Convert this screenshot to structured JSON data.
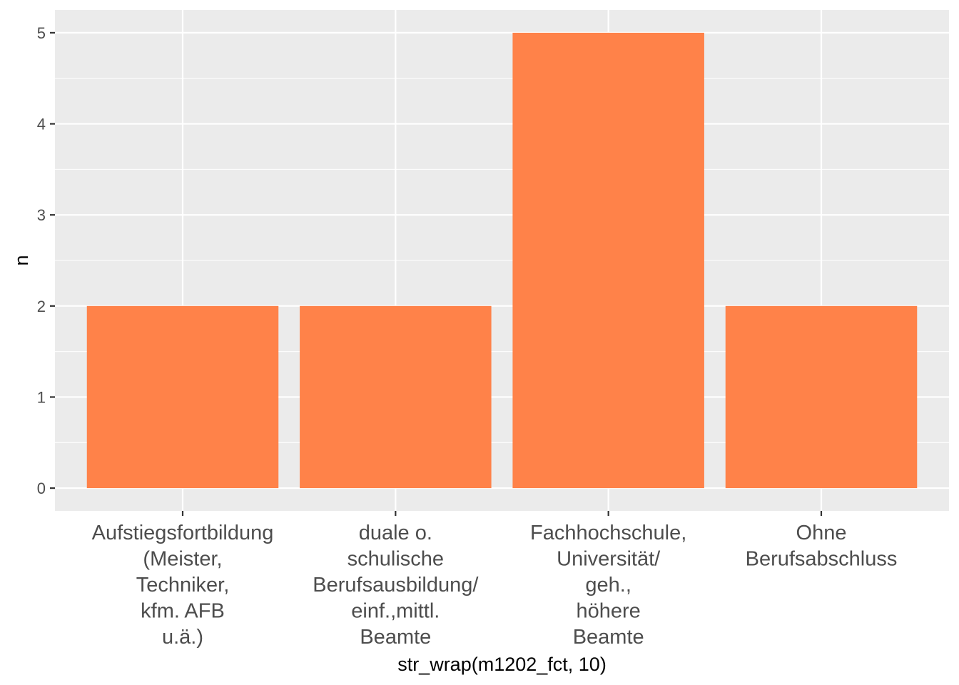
{
  "chart_data": {
    "type": "bar",
    "xlabel": "str_wrap(m1202_fct, 10)",
    "ylabel": "n",
    "categories": [
      [
        "Aufstiegsfortbildung",
        "(Meister,",
        "Techniker,",
        "kfm. AFB",
        "u.ä.)"
      ],
      [
        "duale o.",
        "schulische",
        "Berufsausbildung/",
        "einf.,mittl.",
        "Beamte"
      ],
      [
        "Fachhochschule,",
        "Universität/",
        "geh.,",
        "höhere",
        "Beamte"
      ],
      [
        "Ohne",
        "Berufsabschluss"
      ]
    ],
    "values": [
      2,
      2,
      5,
      2
    ],
    "ylim": [
      -0.25,
      5.25
    ],
    "yticks": [
      0,
      1,
      2,
      3,
      4,
      5
    ],
    "grid": true,
    "legend": "none",
    "colors": {
      "bar": "#ff8249",
      "panel": "#ebebeb",
      "grid_major": "#ffffff",
      "tick_text": "#4d4d4d",
      "tick_mark": "#333333"
    }
  }
}
